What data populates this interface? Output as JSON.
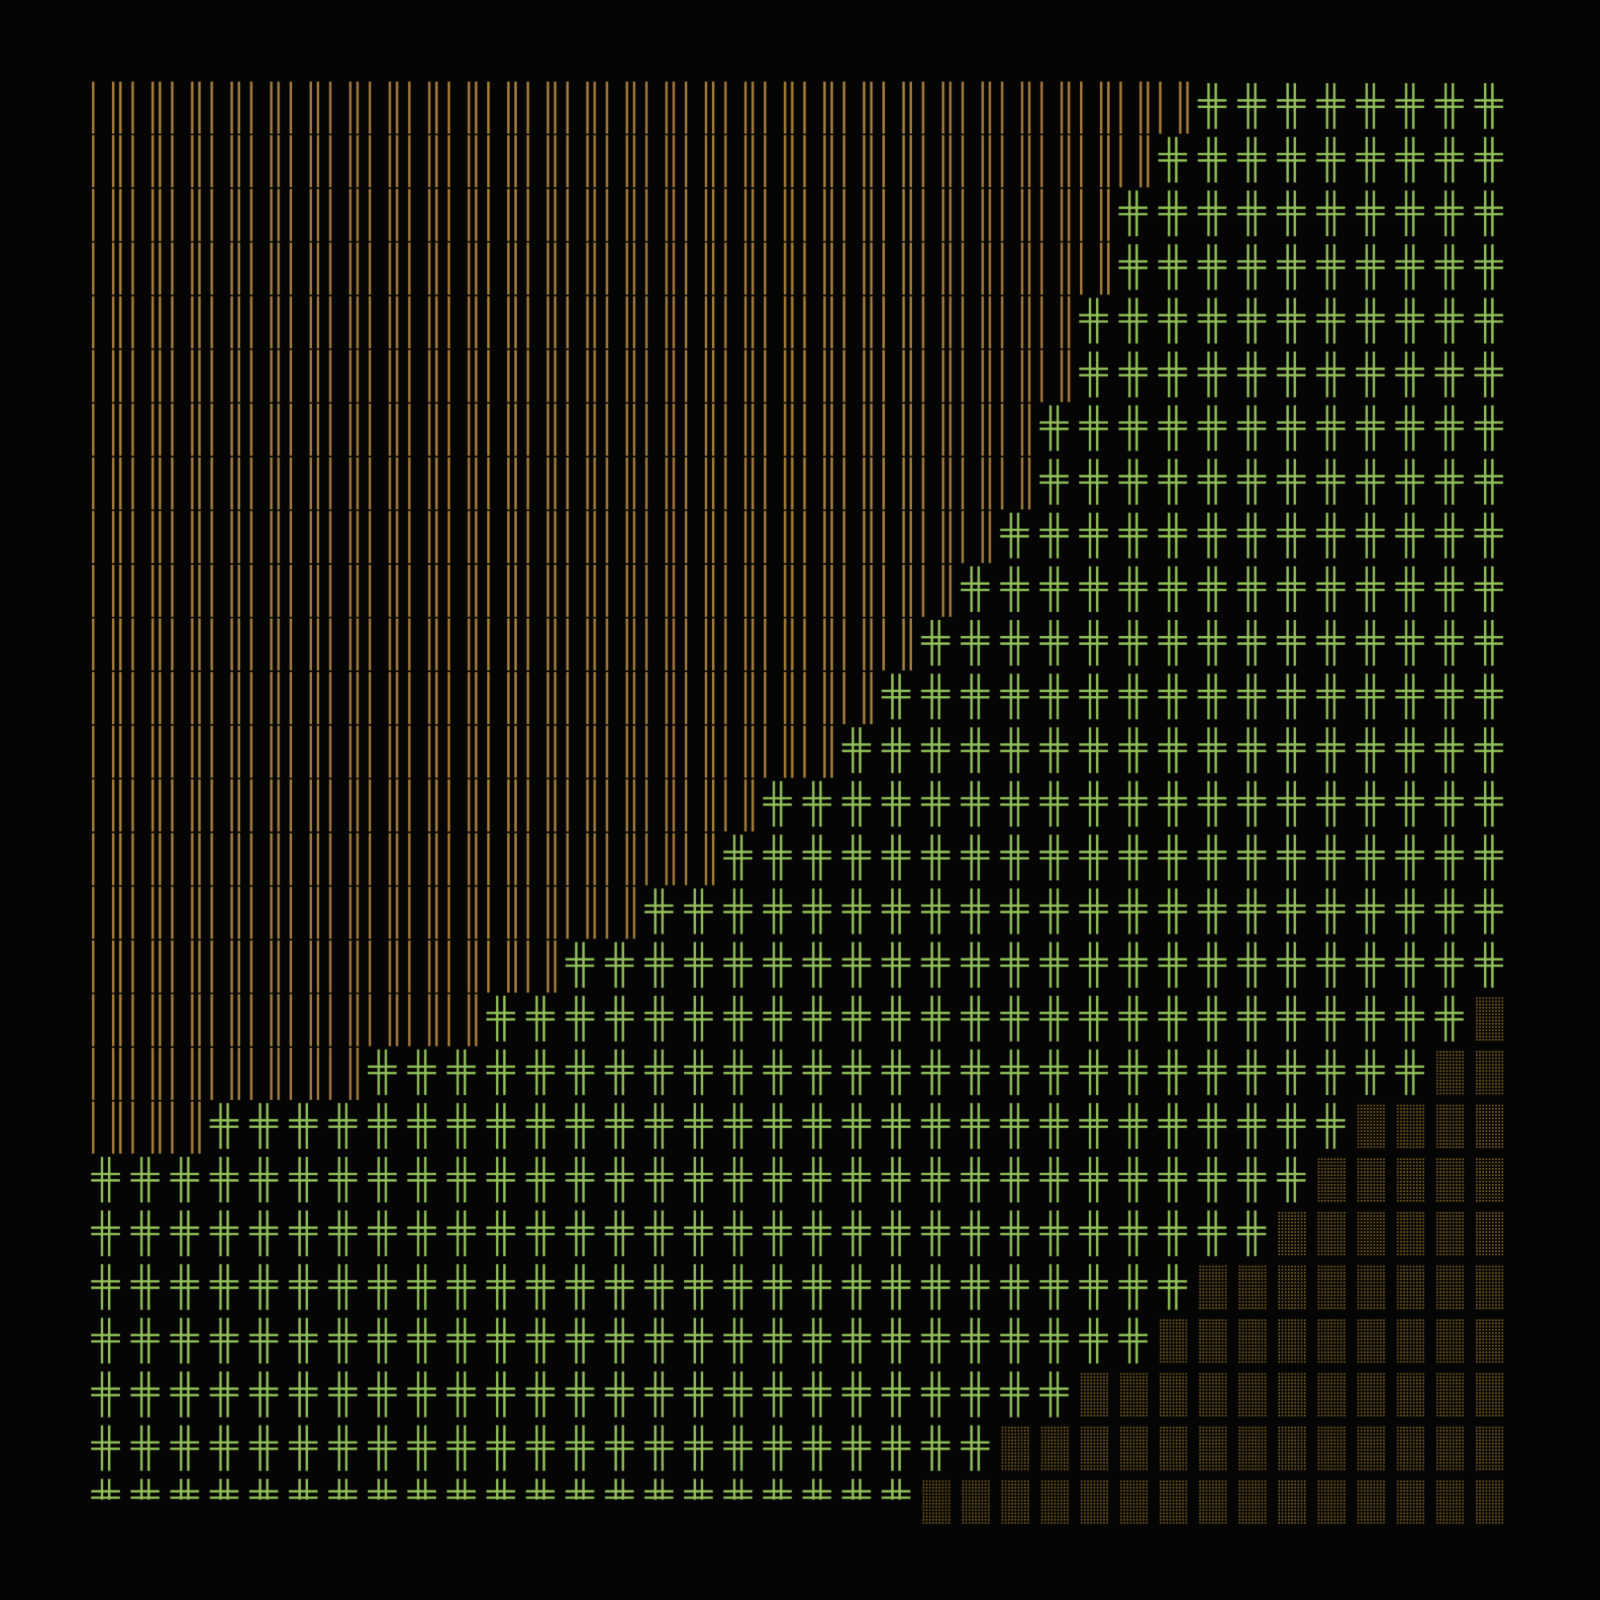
{
  "artwork": {
    "background_color": "#050505",
    "grid": {
      "columns": 36,
      "rows": 27
    },
    "regions": [
      {
        "name": "dashes",
        "glyph": "vertical-double-dash",
        "color": "#a87f3c",
        "position": "top-left"
      },
      {
        "name": "crosses",
        "glyph": "double-cross",
        "color": "#93c25a",
        "position": "diagonal-band"
      },
      {
        "name": "dots",
        "glyph": "stipple-block",
        "color": "#8a6a22",
        "position": "bottom-right"
      }
    ]
  }
}
